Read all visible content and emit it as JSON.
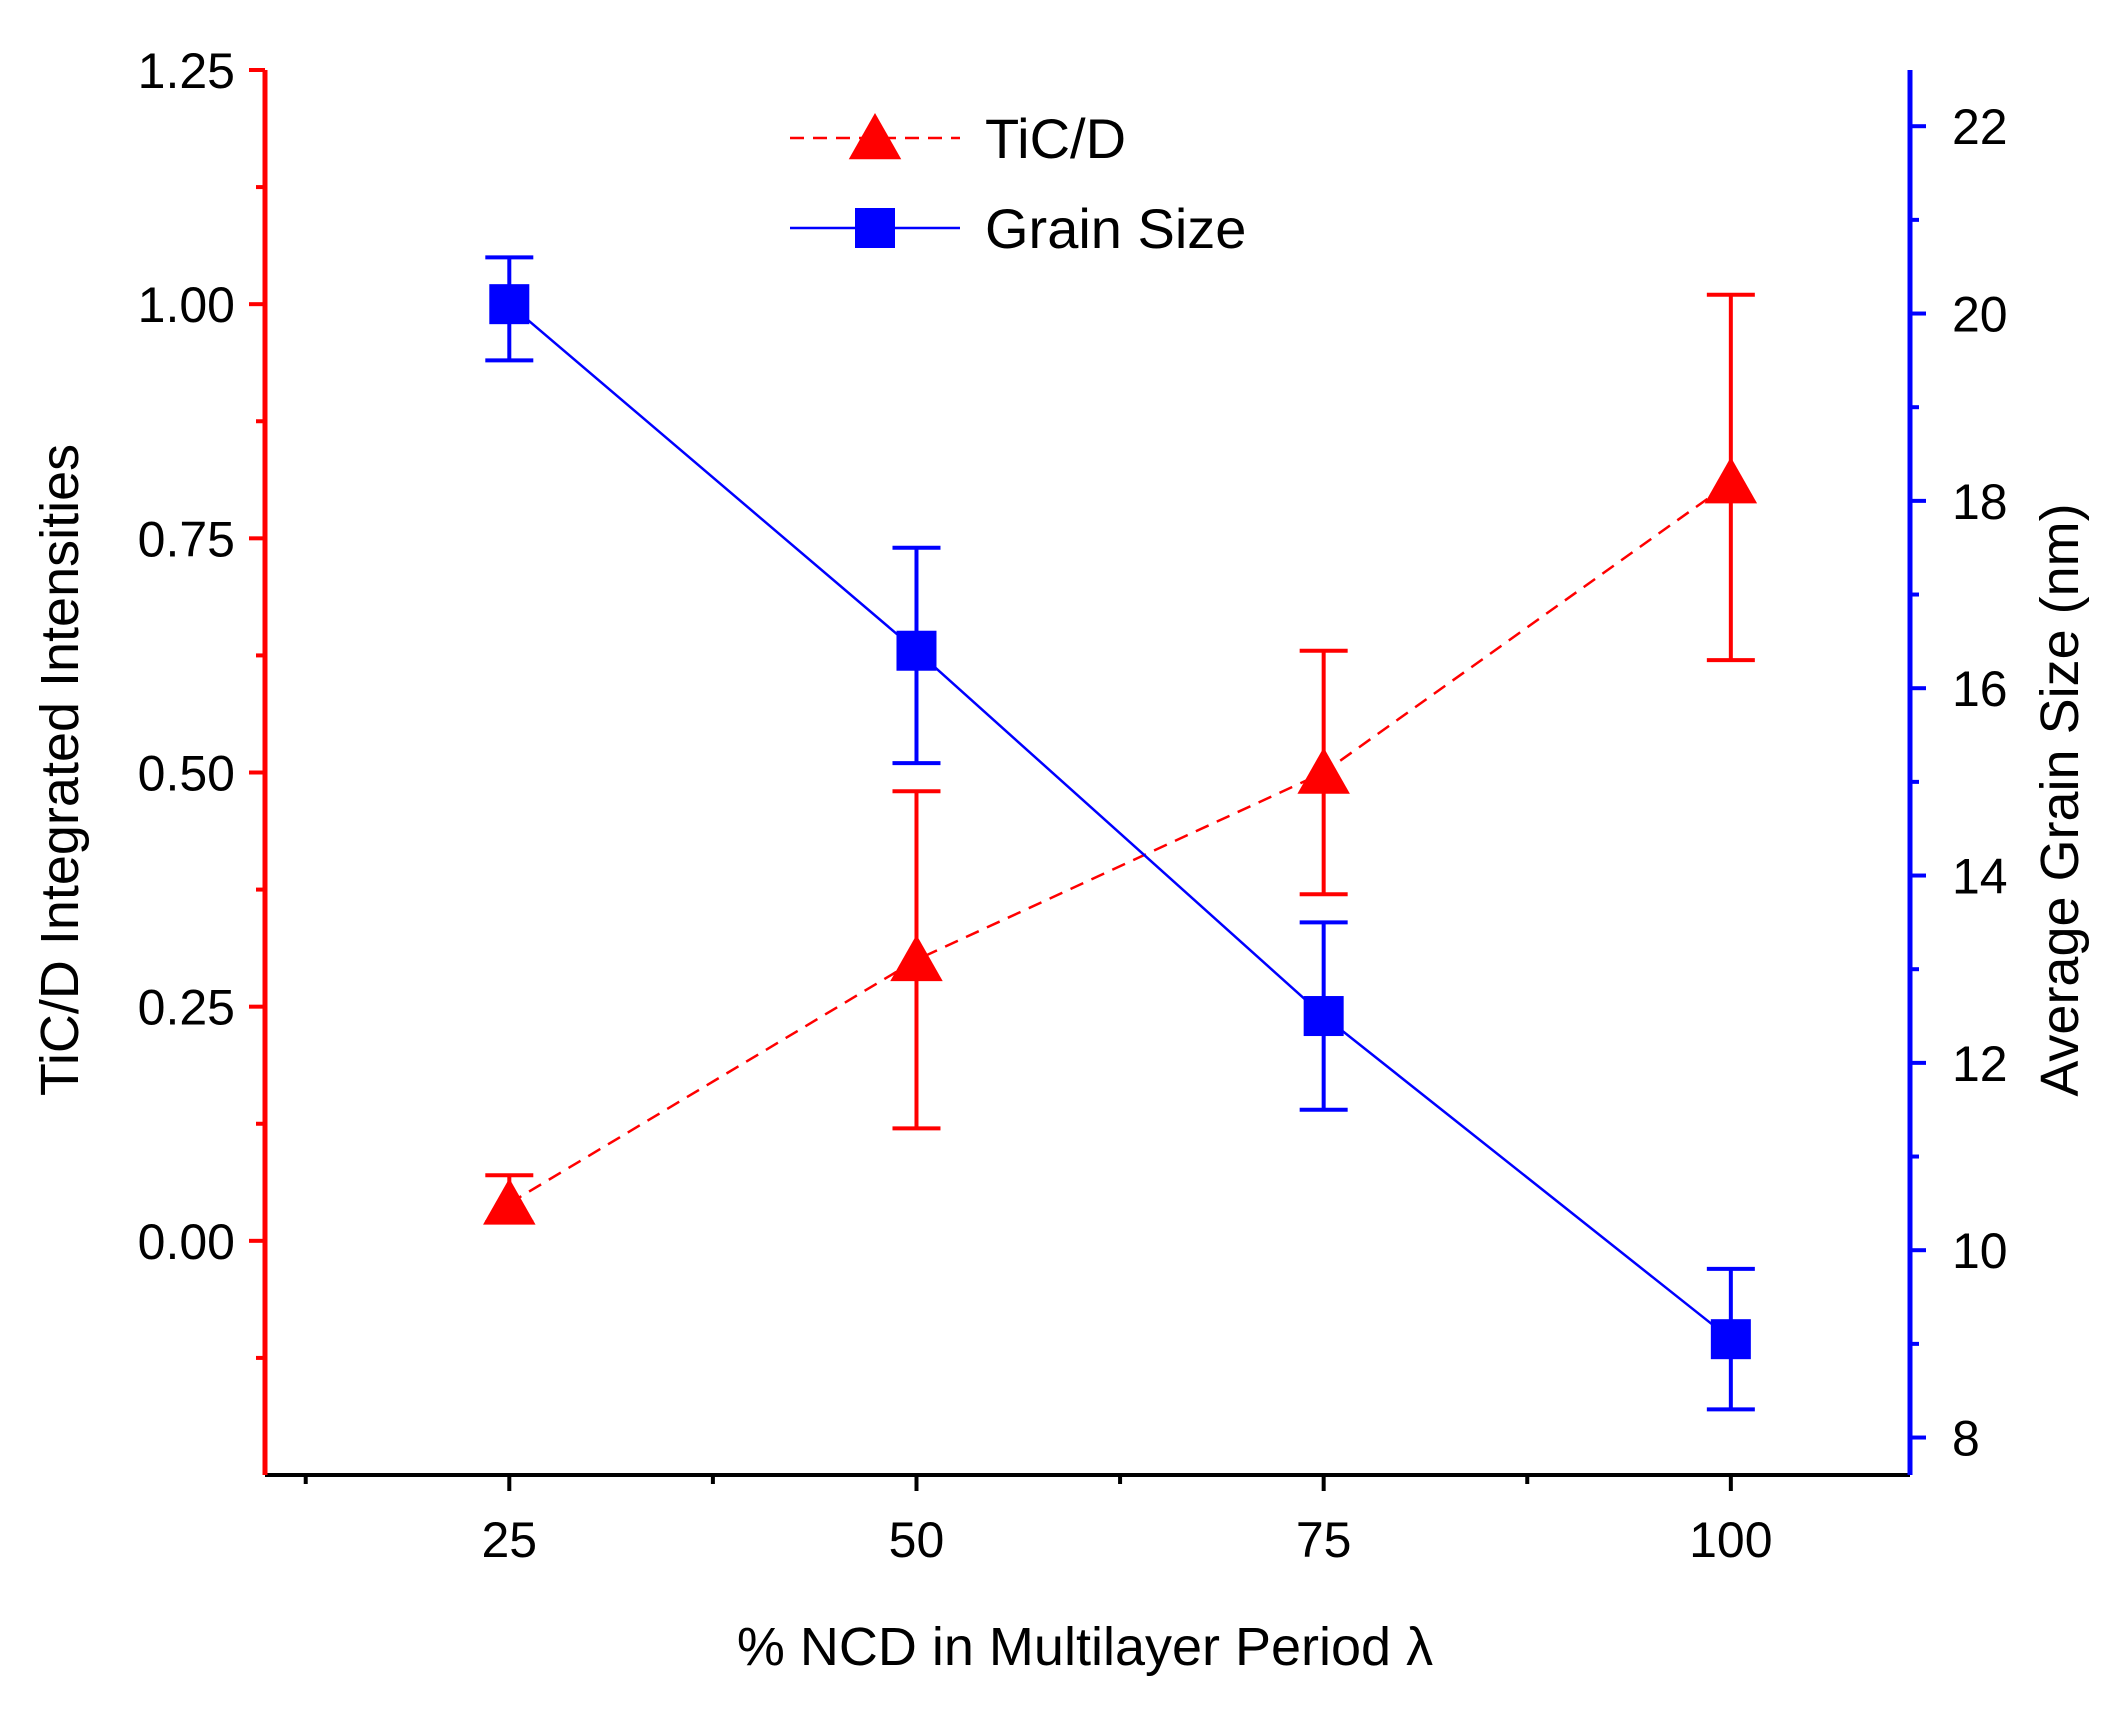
{
  "chart_data": {
    "type": "line",
    "x": [
      25,
      50,
      75,
      100
    ],
    "xlabel": "% NCD in Multilayer Period λ",
    "xlim": [
      10,
      111
    ],
    "x_ticks": [
      25,
      50,
      75,
      100
    ],
    "x_tick_labels": [
      "25",
      "50",
      "75",
      "100"
    ],
    "y_left": {
      "label": "TiC/D Integrated Intensities",
      "lim": [
        -0.25,
        1.25
      ],
      "ticks": [
        0.0,
        0.25,
        0.5,
        0.75,
        1.0,
        1.25
      ],
      "tick_labels": [
        "0.00",
        "0.25",
        "0.50",
        "0.75",
        "1.00",
        "1.25"
      ],
      "color": "#ff0000"
    },
    "y_right": {
      "label": "Average Grain Size (nm)",
      "lim": [
        7.6,
        22.6
      ],
      "ticks": [
        8,
        10,
        12,
        14,
        16,
        18,
        20,
        22
      ],
      "tick_labels": [
        "8",
        "10",
        "12",
        "14",
        "16",
        "18",
        "20",
        "22"
      ],
      "color": "#0000ff"
    },
    "series": [
      {
        "name": "TiC/D",
        "axis": "left",
        "color": "#ff0000",
        "marker": "triangle",
        "line_style": "dashed",
        "values": [
          0.04,
          0.3,
          0.5,
          0.81
        ],
        "err_low": [
          0.02,
          0.12,
          0.37,
          0.62
        ],
        "err_high": [
          0.07,
          0.48,
          0.63,
          1.01
        ]
      },
      {
        "name": "Grain Size",
        "axis": "right",
        "color": "#0000ff",
        "marker": "square",
        "line_style": "solid",
        "values": [
          20.1,
          16.4,
          12.5,
          9.05
        ],
        "err_low": [
          19.5,
          15.2,
          11.5,
          8.3
        ],
        "err_high": [
          20.6,
          17.5,
          13.5,
          9.8
        ]
      }
    ],
    "legend": {
      "position": "top-center",
      "entries": [
        "TiC/D",
        "Grain Size"
      ]
    }
  }
}
